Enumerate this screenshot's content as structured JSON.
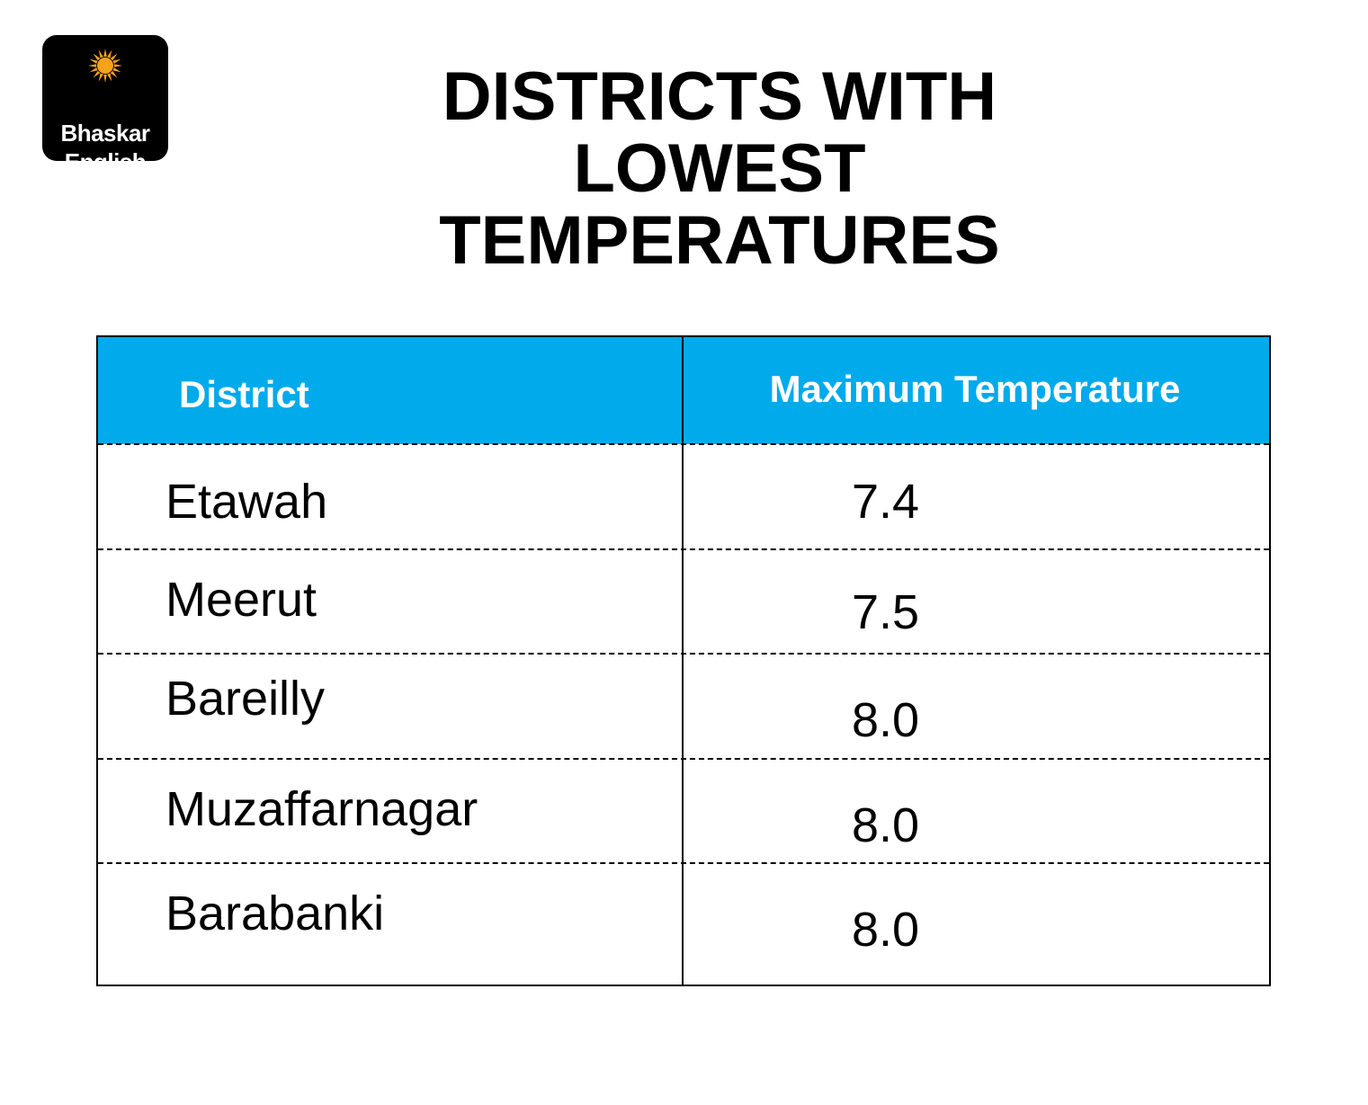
{
  "logo": {
    "line1": "Bhaskar",
    "line2": "English",
    "sun_color": "#f7a21b"
  },
  "title": {
    "line1": "DISTRICTS WITH LOWEST",
    "line2": "TEMPERATURES"
  },
  "colors": {
    "header_bg": "#00aaeb",
    "header_text": "#ffffff"
  },
  "chart_data": {
    "type": "table",
    "title": "DISTRICTS WITH LOWEST TEMPERATURES",
    "columns": [
      "District",
      "Maximum Temperature"
    ],
    "rows": [
      {
        "district": "Etawah",
        "value": "7.4"
      },
      {
        "district": "Meerut",
        "value": "7.5"
      },
      {
        "district": "Bareilly",
        "value": "8.0"
      },
      {
        "district": "Muzaffarnagar",
        "value": "8.0"
      },
      {
        "district": "Barabanki",
        "value": "8.0"
      }
    ]
  }
}
